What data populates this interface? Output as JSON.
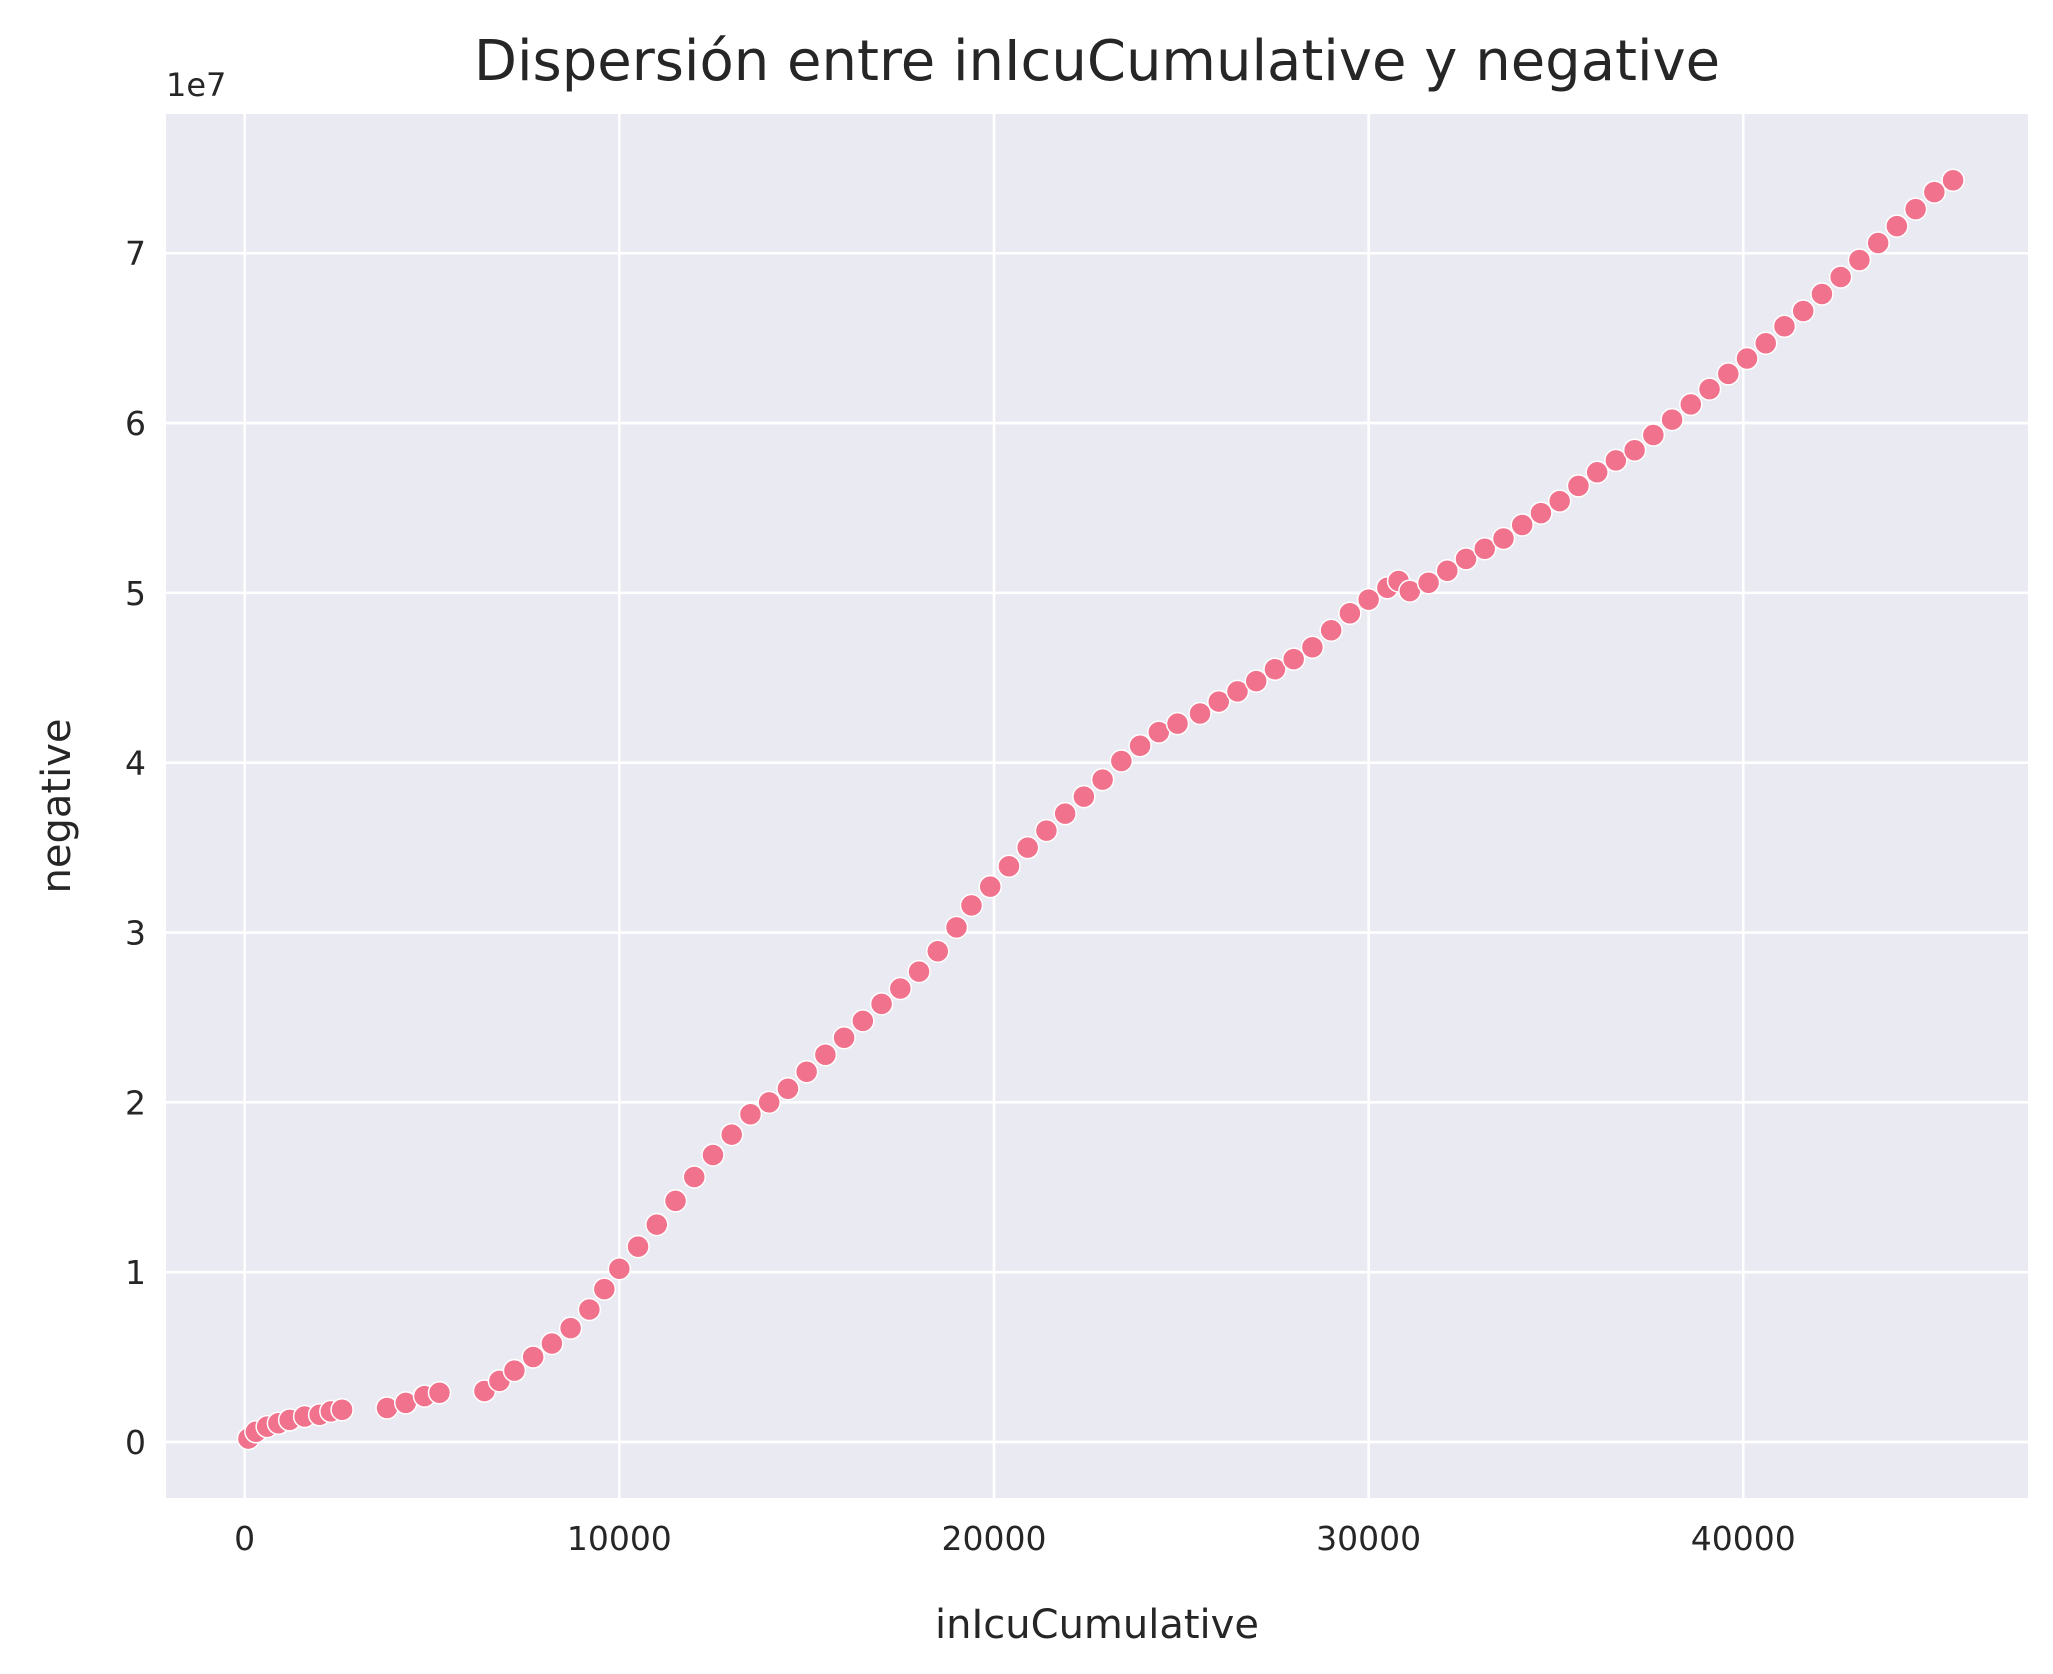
{
  "chart_data": {
    "type": "scatter",
    "title": "Dispersión entre inIcuCumulative y negative",
    "xlabel": "inIcuCumulative",
    "ylabel": "negative",
    "y_offset_label": "1e7",
    "xlim": [
      -2100,
      47600
    ],
    "ylim": [
      -3300000,
      78200000
    ],
    "x_ticks": [
      0,
      10000,
      20000,
      30000,
      40000
    ],
    "x_tick_labels": [
      "0",
      "10000",
      "20000",
      "30000",
      "40000"
    ],
    "y_ticks": [
      0,
      10000000,
      20000000,
      30000000,
      40000000,
      50000000,
      60000000,
      70000000
    ],
    "y_tick_labels": [
      "0",
      "1",
      "2",
      "3",
      "4",
      "5",
      "6",
      "7"
    ],
    "grid": true,
    "colors": {
      "point": "#f0728d",
      "point_edge": "#ffffff",
      "background": "#eaeaf2",
      "grid": "#ffffff"
    },
    "x": [
      100,
      300,
      600,
      900,
      1200,
      1600,
      2000,
      2300,
      2600,
      3800,
      4300,
      4800,
      5200,
      6400,
      6800,
      7200,
      7700,
      8200,
      8700,
      9200,
      9600,
      10000,
      10500,
      11000,
      11500,
      12000,
      12500,
      13000,
      13500,
      14000,
      14500,
      15000,
      15500,
      16000,
      16500,
      17000,
      17500,
      18000,
      18500,
      19000,
      19400,
      19900,
      20400,
      20900,
      21400,
      21900,
      22400,
      22900,
      23400,
      23900,
      24400,
      24900,
      25500,
      26000,
      26500,
      27000,
      27500,
      28000,
      28500,
      29000,
      29500,
      30000,
      30500,
      30800,
      31100,
      31600,
      32100,
      32600,
      33100,
      33600,
      34100,
      34600,
      35100,
      35600,
      36100,
      36600,
      37100,
      37600,
      38100,
      38600,
      39100,
      39600,
      40100,
      40600,
      41100,
      41600,
      42100,
      42600,
      43100,
      43600,
      44100,
      44600,
      45100,
      45600
    ],
    "y": [
      200000,
      600000,
      900000,
      1100000,
      1300000,
      1500000,
      1600000,
      1800000,
      1900000,
      2000000,
      2300000,
      2700000,
      2900000,
      3000000,
      3600000,
      4200000,
      5000000,
      5800000,
      6700000,
      7800000,
      9000000,
      10200000,
      11500000,
      12800000,
      14200000,
      15600000,
      16900000,
      18100000,
      19300000,
      20000000,
      20800000,
      21800000,
      22800000,
      23800000,
      24800000,
      25800000,
      26700000,
      27700000,
      28900000,
      30300000,
      31600000,
      32700000,
      33900000,
      35000000,
      36000000,
      37000000,
      38000000,
      39000000,
      40100000,
      41000000,
      41800000,
      42300000,
      42900000,
      43600000,
      44200000,
      44800000,
      45500000,
      46100000,
      46800000,
      47800000,
      48800000,
      49600000,
      50300000,
      50700000,
      50100000,
      50600000,
      51300000,
      52000000,
      52600000,
      53200000,
      54000000,
      54700000,
      55400000,
      56300000,
      57100000,
      57800000,
      58400000,
      59300000,
      60200000,
      61100000,
      62000000,
      62900000,
      63800000,
      64700000,
      65700000,
      66600000,
      67600000,
      68600000,
      69600000,
      70600000,
      71600000,
      72600000,
      73600000,
      74300000
    ]
  }
}
